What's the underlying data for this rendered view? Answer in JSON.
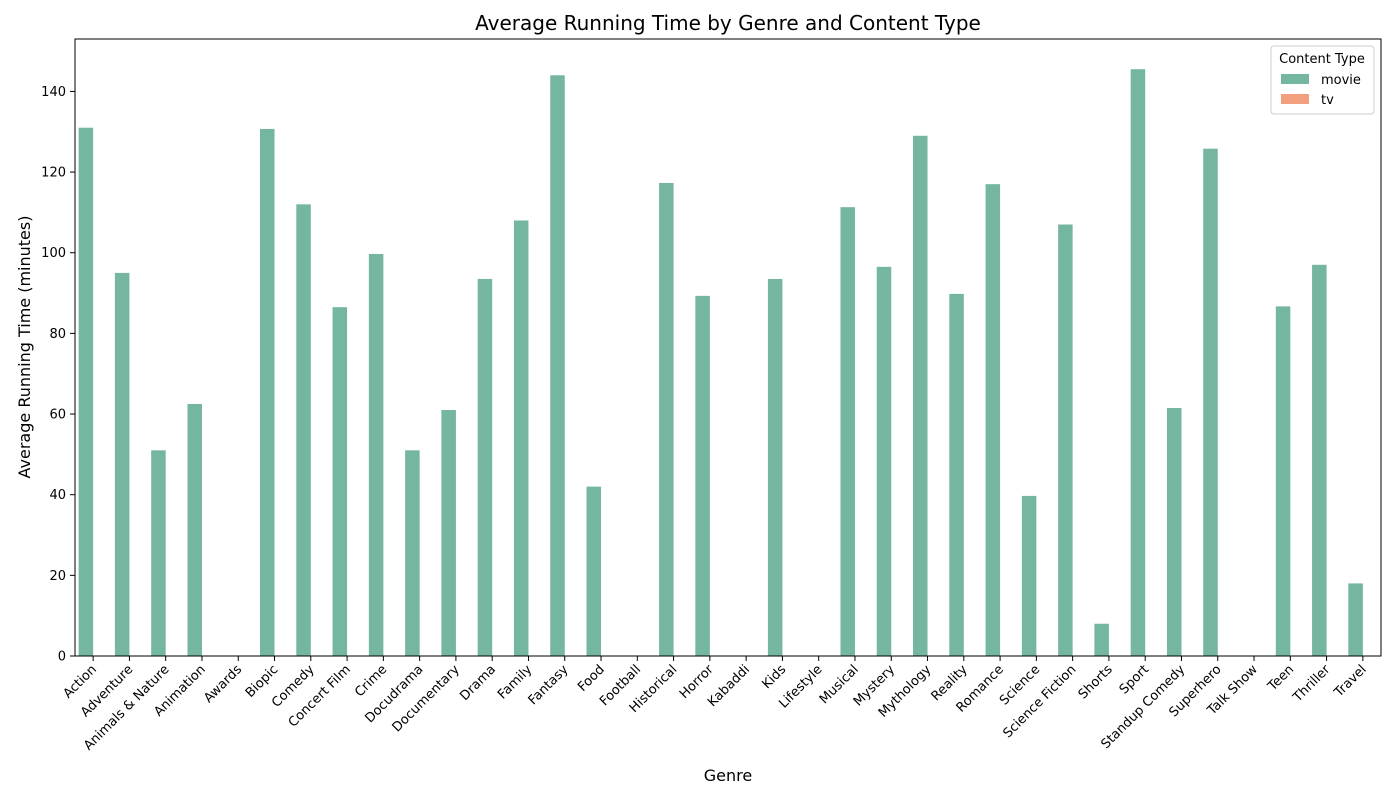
{
  "chart_data": {
    "type": "bar",
    "title": "Average Running Time by Genre and Content Type",
    "xlabel": "Genre",
    "ylabel": "Average Running Time (minutes)",
    "ylim": [
      0,
      153
    ],
    "yticks": [
      0,
      20,
      40,
      60,
      80,
      100,
      120,
      140
    ],
    "grid": false,
    "legend": {
      "title": "Content Type",
      "placement": "top-right"
    },
    "categories": [
      "Action",
      "Adventure",
      "Animals & Nature",
      "Animation",
      "Awards",
      "Biopic",
      "Comedy",
      "Concert Film",
      "Crime",
      "Docudrama",
      "Documentary",
      "Drama",
      "Family",
      "Fantasy",
      "Food",
      "Football",
      "Historical",
      "Horror",
      "Kabaddi",
      "Kids",
      "Lifestyle",
      "Musical",
      "Mystery",
      "Mythology",
      "Reality",
      "Romance",
      "Science",
      "Science Fiction",
      "Shorts",
      "Sport",
      "Standup Comedy",
      "Superhero",
      "Talk Show",
      "Teen",
      "Thriller",
      "Travel"
    ],
    "series": [
      {
        "name": "movie",
        "color": "#74b6a0",
        "values": [
          131,
          95,
          51,
          62.5,
          null,
          130.7,
          112,
          86.5,
          99.7,
          51,
          61,
          93.5,
          108,
          144,
          42,
          null,
          117.3,
          89.3,
          null,
          93.5,
          null,
          111.3,
          96.5,
          129,
          89.8,
          117,
          39.7,
          107,
          8,
          145.5,
          61.5,
          125.8,
          null,
          86.7,
          97,
          18
        ]
      },
      {
        "name": "tv",
        "color": "#f19f7c",
        "values": [
          null,
          null,
          null,
          null,
          null,
          null,
          null,
          null,
          null,
          null,
          null,
          null,
          null,
          null,
          null,
          null,
          null,
          null,
          null,
          null,
          null,
          null,
          null,
          null,
          null,
          null,
          null,
          null,
          null,
          null,
          null,
          null,
          null,
          null,
          null,
          null
        ]
      }
    ]
  }
}
